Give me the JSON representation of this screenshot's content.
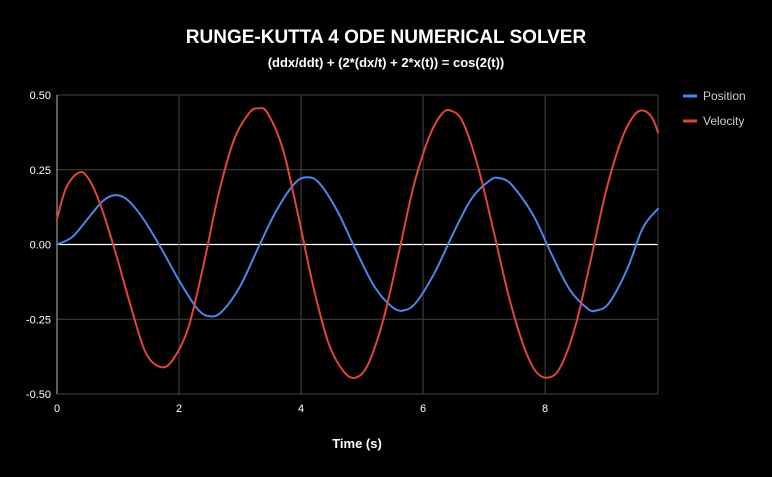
{
  "chart_data": {
    "type": "line",
    "title": "RUNGE-KUTTA 4 ODE NUMERICAL SOLVER",
    "subtitle": "(ddx/ddt) + (2*(dx/t) + 2*x(t)) = cos(2(t))",
    "xlabel": "Time (s)",
    "ylabel": "",
    "xlim": [
      0,
      9.85
    ],
    "ylim": [
      -0.5,
      0.5
    ],
    "x_ticks": [
      "0",
      "2",
      "4",
      "6",
      "8"
    ],
    "x_tick_values": [
      0,
      2,
      4,
      6,
      8
    ],
    "y_ticks": [
      "0.50",
      "0.25",
      "0.00",
      "-0.25",
      "-0.50"
    ],
    "y_tick_values": [
      0.5,
      0.25,
      0,
      -0.25,
      -0.5
    ],
    "grid": true,
    "legend_position": "right",
    "colors": {
      "background": "#000000",
      "grid": "#444444",
      "zero_line": "#ffffff",
      "text": "#ffffff"
    },
    "series": [
      {
        "name": "Position",
        "color": "#4a86e8",
        "points": [
          [
            0,
            0
          ],
          [
            0.25,
            0.025
          ],
          [
            0.5,
            0.085
          ],
          [
            0.75,
            0.145
          ],
          [
            0.95,
            0.165
          ],
          [
            1.15,
            0.15
          ],
          [
            1.4,
            0.09
          ],
          [
            1.7,
            -0.01
          ],
          [
            2.0,
            -0.12
          ],
          [
            2.3,
            -0.215
          ],
          [
            2.5,
            -0.24
          ],
          [
            2.7,
            -0.225
          ],
          [
            3.0,
            -0.14
          ],
          [
            3.3,
            -0.01
          ],
          [
            3.6,
            0.115
          ],
          [
            3.9,
            0.205
          ],
          [
            4.1,
            0.225
          ],
          [
            4.3,
            0.205
          ],
          [
            4.6,
            0.11
          ],
          [
            4.9,
            -0.02
          ],
          [
            5.2,
            -0.14
          ],
          [
            5.5,
            -0.21
          ],
          [
            5.7,
            -0.22
          ],
          [
            5.9,
            -0.19
          ],
          [
            6.2,
            -0.09
          ],
          [
            6.5,
            0.04
          ],
          [
            6.8,
            0.155
          ],
          [
            7.1,
            0.215
          ],
          [
            7.25,
            0.222
          ],
          [
            7.45,
            0.2
          ],
          [
            7.8,
            0.1
          ],
          [
            8.1,
            -0.03
          ],
          [
            8.4,
            -0.15
          ],
          [
            8.7,
            -0.215
          ],
          [
            8.85,
            -0.22
          ],
          [
            9.05,
            -0.195
          ],
          [
            9.35,
            -0.08
          ],
          [
            9.6,
            0.055
          ],
          [
            9.85,
            0.12
          ]
        ]
      },
      {
        "name": "Velocity",
        "color": "#e0453a",
        "points": [
          [
            0,
            0.085
          ],
          [
            0.15,
            0.19
          ],
          [
            0.35,
            0.24
          ],
          [
            0.5,
            0.225
          ],
          [
            0.7,
            0.14
          ],
          [
            0.95,
            -0.02
          ],
          [
            1.2,
            -0.2
          ],
          [
            1.45,
            -0.36
          ],
          [
            1.7,
            -0.41
          ],
          [
            1.9,
            -0.385
          ],
          [
            2.15,
            -0.28
          ],
          [
            2.4,
            -0.07
          ],
          [
            2.65,
            0.17
          ],
          [
            2.9,
            0.35
          ],
          [
            3.15,
            0.44
          ],
          [
            3.3,
            0.455
          ],
          [
            3.45,
            0.44
          ],
          [
            3.7,
            0.32
          ],
          [
            3.95,
            0.1
          ],
          [
            4.2,
            -0.14
          ],
          [
            4.45,
            -0.33
          ],
          [
            4.7,
            -0.425
          ],
          [
            4.9,
            -0.445
          ],
          [
            5.1,
            -0.4
          ],
          [
            5.35,
            -0.25
          ],
          [
            5.6,
            -0.03
          ],
          [
            5.85,
            0.2
          ],
          [
            6.1,
            0.36
          ],
          [
            6.3,
            0.435
          ],
          [
            6.45,
            0.448
          ],
          [
            6.65,
            0.41
          ],
          [
            6.9,
            0.26
          ],
          [
            7.15,
            0.05
          ],
          [
            7.4,
            -0.17
          ],
          [
            7.65,
            -0.34
          ],
          [
            7.85,
            -0.425
          ],
          [
            8.05,
            -0.445
          ],
          [
            8.25,
            -0.41
          ],
          [
            8.5,
            -0.27
          ],
          [
            8.75,
            -0.05
          ],
          [
            9.0,
            0.18
          ],
          [
            9.25,
            0.35
          ],
          [
            9.45,
            0.43
          ],
          [
            9.6,
            0.448
          ],
          [
            9.75,
            0.425
          ],
          [
            9.85,
            0.375
          ]
        ]
      }
    ]
  }
}
